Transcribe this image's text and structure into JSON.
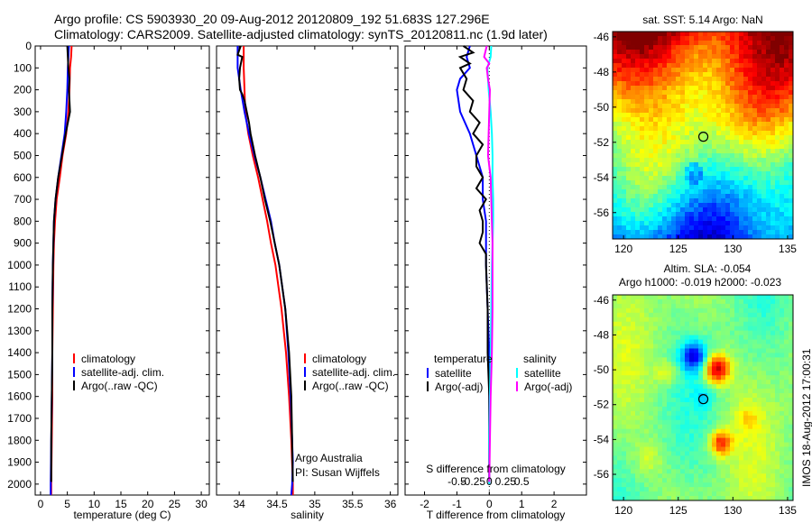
{
  "header": {
    "line1": "Argo profile: CS 5903930_20 09-Aug-2012 20120809_192 51.683S 127.296E",
    "line2": "Climatology: CARS2009. Satellite-adjusted climatology: synTS_20120811.nc (1.9d later)"
  },
  "colors": {
    "clim": "#ff0000",
    "sat": "#0000ff",
    "argo": "#000000",
    "sat_sal": "#00ffff",
    "argo_sal": "#ff00ff"
  },
  "chart_data": [
    {
      "type": "line",
      "xlabel": "temperature (deg C)",
      "xlim": [
        -1,
        31.5
      ],
      "ylim": [
        0,
        2050
      ],
      "y_inverted": true,
      "xticks": [
        0,
        5,
        10,
        15,
        20,
        25,
        30
      ],
      "yticks": [
        0,
        100,
        200,
        300,
        400,
        500,
        600,
        700,
        800,
        900,
        1000,
        1100,
        1200,
        1300,
        1400,
        1500,
        1600,
        1700,
        1800,
        1900,
        2000
      ],
      "legend": {
        "placement": "lower-middle",
        "entries": [
          "climatology",
          "satellite-adj. clim.",
          "Argo(..raw -QC)"
        ]
      },
      "series": [
        {
          "name": "climatology",
          "depth": [
            0,
            50,
            100,
            200,
            300,
            400,
            500,
            600,
            700,
            800,
            900,
            1000,
            1200,
            1400,
            1600,
            1800,
            2000,
            2050
          ],
          "values": [
            5.8,
            5.7,
            5.5,
            5.4,
            5.2,
            4.8,
            4.1,
            3.6,
            3.0,
            2.7,
            2.5,
            2.4,
            2.3,
            2.2,
            2.2,
            2.1,
            2.0,
            2.0
          ]
        },
        {
          "name": "satellite-adj. clim.",
          "depth": [
            0,
            50,
            100,
            200,
            300,
            400,
            500,
            600,
            700,
            800,
            900,
            1000,
            1200,
            1400,
            1600,
            1800,
            2000,
            2050
          ],
          "values": [
            5.3,
            5.2,
            5.1,
            5.0,
            4.8,
            4.5,
            3.9,
            3.3,
            2.8,
            2.5,
            2.4,
            2.3,
            2.2,
            2.2,
            2.1,
            2.0,
            1.9,
            1.9
          ]
        },
        {
          "name": "Argo(..raw -QC)",
          "depth": [
            0,
            50,
            100,
            150,
            200,
            250,
            300,
            350,
            400,
            500,
            600,
            700,
            800,
            900,
            1000,
            1200,
            1400,
            1600,
            1800,
            1990
          ],
          "values": [
            5.0,
            5.1,
            5.2,
            5.4,
            5.3,
            5.4,
            5.5,
            5.1,
            4.7,
            4.0,
            3.3,
            2.8,
            2.5,
            2.4,
            2.3,
            2.2,
            2.2,
            2.1,
            2.0,
            2.0
          ]
        }
      ]
    },
    {
      "type": "line",
      "xlabel": "salinity",
      "xlim": [
        33.7,
        36.1
      ],
      "ylim": [
        0,
        2050
      ],
      "y_inverted": true,
      "xticks": [
        34,
        34.5,
        35,
        35.5,
        36
      ],
      "legend": {
        "placement": "lower-right",
        "entries": [
          "climatology",
          "satellite-adj. clim.",
          "Argo(..raw -QC)"
        ]
      },
      "annotations": [
        "Argo Australia",
        "PI: Susan Wijffels"
      ],
      "series": [
        {
          "name": "climatology",
          "depth": [
            0,
            100,
            200,
            300,
            400,
            500,
            600,
            700,
            800,
            900,
            1000,
            1200,
            1400,
            1600,
            1800,
            2000,
            2050
          ],
          "values": [
            34.06,
            34.06,
            34.07,
            34.08,
            34.12,
            34.18,
            34.25,
            34.31,
            34.37,
            34.42,
            34.48,
            34.56,
            34.62,
            34.66,
            34.69,
            34.71,
            34.71
          ]
        },
        {
          "name": "satellite-adj. clim.",
          "depth": [
            0,
            100,
            200,
            300,
            400,
            500,
            600,
            700,
            800,
            900,
            1000,
            1200,
            1400,
            1600,
            1800,
            1900,
            2000,
            2050
          ],
          "values": [
            33.98,
            33.98,
            34.02,
            34.07,
            34.13,
            34.2,
            34.28,
            34.35,
            34.42,
            34.47,
            34.53,
            34.61,
            34.65,
            34.68,
            34.7,
            34.71,
            34.7,
            34.69
          ]
        },
        {
          "name": "Argo(..raw -QC)",
          "depth": [
            0,
            40,
            50,
            100,
            150,
            200,
            220,
            250,
            300,
            350,
            400,
            500,
            600,
            700,
            800,
            900,
            1000,
            1200,
            1400,
            1600,
            1800,
            1990
          ],
          "values": [
            34.02,
            33.98,
            34.04,
            34.01,
            34.0,
            34.01,
            34.04,
            34.07,
            34.1,
            34.13,
            34.15,
            34.21,
            34.28,
            34.34,
            34.41,
            34.47,
            34.53,
            34.61,
            34.66,
            34.69,
            34.7,
            34.71
          ]
        }
      ]
    },
    {
      "type": "line",
      "xlabel": "T difference from climatology",
      "xlabel_top": "S difference from climatology",
      "xlim": [
        -2.6,
        3.0
      ],
      "ylim": [
        0,
        2050
      ],
      "y_inverted": true,
      "xticks": [
        -2,
        -1,
        0,
        1,
        2
      ],
      "xticks_top": [
        -0.5,
        -0.25,
        0,
        0.25,
        0.5
      ],
      "xticklabels_top": [
        "-0.5",
        "-0.25",
        "0",
        "0.25",
        "0.5"
      ],
      "legend": {
        "placement": "lower",
        "groups": [
          {
            "title": "temperature",
            "entries": [
              "satellite",
              "Argo(-adj)"
            ]
          },
          {
            "title": "salinity",
            "entries": [
              "satellite",
              "Argo(-adj)"
            ]
          }
        ]
      },
      "series": [
        {
          "name": "satellite",
          "group": "temperature",
          "depth": [
            0,
            50,
            100,
            150,
            200,
            300,
            400,
            500,
            600,
            700,
            800,
            900,
            1000,
            1200,
            1400,
            1600,
            1800,
            2000
          ],
          "values": [
            -0.6,
            -0.7,
            -0.6,
            -0.9,
            -1.0,
            -0.9,
            -0.6,
            -0.4,
            -0.2,
            -0.2,
            -0.1,
            -0.1,
            -0.1,
            -0.05,
            0,
            0,
            0,
            0
          ]
        },
        {
          "name": "Argo(-adj)",
          "group": "temperature",
          "depth": [
            0,
            30,
            50,
            80,
            100,
            150,
            200,
            250,
            300,
            350,
            400,
            450,
            500,
            550,
            600,
            650,
            700,
            750,
            800,
            850,
            900,
            950,
            1000,
            1200,
            1400,
            1600,
            1800,
            1990
          ],
          "values": [
            -0.8,
            -0.5,
            -0.9,
            -0.6,
            -0.9,
            -0.7,
            -0.8,
            -0.5,
            -0.6,
            -0.3,
            -0.5,
            -0.2,
            -0.4,
            -0.4,
            -0.2,
            -0.4,
            -0.1,
            -0.3,
            -0.2,
            -0.2,
            -0.3,
            -0.1,
            -0.1,
            -0.05,
            -0.05,
            0,
            0,
            0
          ]
        },
        {
          "name": "satellite",
          "group": "salinity",
          "depth": [
            0,
            50,
            100,
            200,
            300,
            400,
            500,
            600,
            700,
            800,
            900,
            1000,
            1200,
            1400,
            1600,
            1800,
            2000
          ],
          "values": [
            0.03,
            0.02,
            -0.03,
            -0.01,
            0.02,
            0.04,
            0.05,
            0.05,
            0.06,
            0.06,
            0.05,
            0.04,
            0.03,
            0.02,
            0.01,
            0.0,
            0.0
          ]
        },
        {
          "name": "Argo(-adj)",
          "group": "salinity",
          "depth": [
            0,
            50,
            80,
            100,
            150,
            200,
            300,
            400,
            500,
            600,
            700,
            800,
            900,
            1000,
            1200,
            1400,
            1600,
            1800,
            1990
          ],
          "values": [
            -0.04,
            -0.08,
            0.0,
            -0.04,
            -0.02,
            0.01,
            0.0,
            -0.01,
            -0.02,
            0.02,
            0.03,
            0.04,
            0.05,
            0.05,
            0.05,
            0.04,
            0.02,
            0.01,
            0.0
          ]
        }
      ]
    },
    {
      "type": "heatmap",
      "title": "sat. SST: 5.14  Argo: NaN",
      "xlim": [
        119,
        135.5
      ],
      "ylim": [
        -57.5,
        -45.7
      ],
      "xticks": [
        120,
        125,
        130,
        135
      ],
      "yticks": [
        -46,
        -48,
        -50,
        -52,
        -54,
        -56
      ],
      "marker": {
        "lon": 127.296,
        "lat": -51.683
      }
    },
    {
      "type": "heatmap",
      "title": "Altim. SLA: -0.054",
      "subtitle": "Argo h1000: -0.019  h2000: -0.023",
      "xlim": [
        119,
        135.5
      ],
      "ylim": [
        -57.5,
        -45.7
      ],
      "xticks": [
        120,
        125,
        130,
        135
      ],
      "yticks": [
        -46,
        -48,
        -50,
        -52,
        -54,
        -56
      ],
      "marker": {
        "lon": 127.296,
        "lat": -51.683
      }
    }
  ],
  "side_label": "IMOS 18-Aug-2012 17:00:31"
}
